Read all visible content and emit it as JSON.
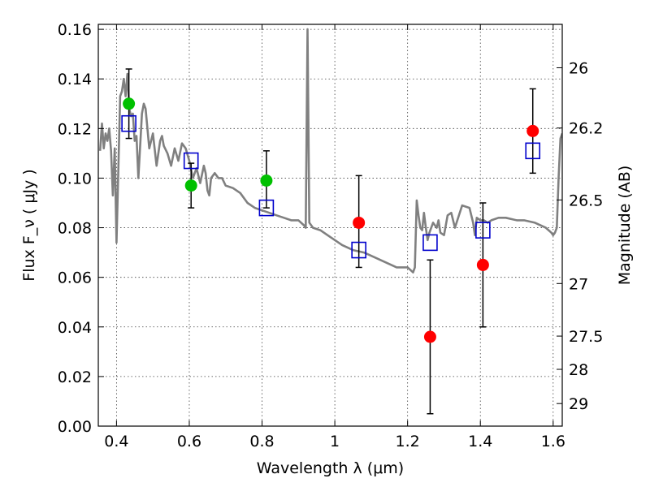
{
  "chart_data": {
    "type": "scatter",
    "xlabel": "Wavelength  λ (μm)",
    "ylabel": "Flux  F_ν  ( μJy )",
    "ylabel_right": "Magnitude (AB)",
    "xlim": [
      0.35,
      1.625
    ],
    "ylim": [
      0.0,
      0.162
    ],
    "grid": true,
    "x_ticks": [
      0.4,
      0.6,
      0.8,
      1.0,
      1.2,
      1.4,
      1.6
    ],
    "x_tick_labels": [
      "0.4",
      "0.6",
      "0.8",
      "1",
      "1.2",
      "1.4",
      "1.6"
    ],
    "y_ticks": [
      0.0,
      0.02,
      0.04,
      0.06,
      0.08,
      0.1,
      0.12,
      0.14,
      0.16
    ],
    "y_tick_labels": [
      "0.00",
      "0.02",
      "0.04",
      "0.06",
      "0.08",
      "0.10",
      "0.12",
      "0.14",
      "0.16"
    ],
    "mag_ticks": [
      {
        "label": "26",
        "flux": 0.1445
      },
      {
        "label": "26.2",
        "flux": 0.1202
      },
      {
        "label": "26.5",
        "flux": 0.0912
      },
      {
        "label": "27",
        "flux": 0.0575
      },
      {
        "label": "27.5",
        "flux": 0.0363
      },
      {
        "label": "28",
        "flux": 0.0229
      },
      {
        "label": "29",
        "flux": 0.0091
      }
    ],
    "series": [
      {
        "kind": "model-spectrum",
        "color": "#808080",
        "x": [
          0.355,
          0.36,
          0.365,
          0.37,
          0.375,
          0.38,
          0.385,
          0.39,
          0.395,
          0.4,
          0.41,
          0.415,
          0.42,
          0.425,
          0.43,
          0.435,
          0.44,
          0.445,
          0.45,
          0.455,
          0.46,
          0.47,
          0.475,
          0.48,
          0.49,
          0.5,
          0.51,
          0.52,
          0.525,
          0.53,
          0.54,
          0.55,
          0.56,
          0.57,
          0.58,
          0.59,
          0.6,
          0.61,
          0.62,
          0.63,
          0.64,
          0.645,
          0.65,
          0.655,
          0.66,
          0.67,
          0.68,
          0.69,
          0.7,
          0.72,
          0.74,
          0.76,
          0.78,
          0.8,
          0.82,
          0.84,
          0.86,
          0.88,
          0.9,
          0.915,
          0.92,
          0.925,
          0.93,
          0.935,
          0.94,
          0.96,
          0.98,
          1.0,
          1.02,
          1.05,
          1.08,
          1.11,
          1.14,
          1.17,
          1.2,
          1.215,
          1.22,
          1.225,
          1.23,
          1.235,
          1.24,
          1.245,
          1.25,
          1.255,
          1.26,
          1.27,
          1.28,
          1.285,
          1.29,
          1.3,
          1.31,
          1.32,
          1.33,
          1.35,
          1.37,
          1.38,
          1.385,
          1.39,
          1.4,
          1.41,
          1.42,
          1.43,
          1.45,
          1.47,
          1.5,
          1.52,
          1.55,
          1.58,
          1.595,
          1.6,
          1.605,
          1.61,
          1.615,
          1.62,
          1.625
        ],
        "y": [
          0.111,
          0.122,
          0.112,
          0.118,
          0.115,
          0.12,
          0.111,
          0.093,
          0.112,
          0.074,
          0.133,
          0.135,
          0.14,
          0.133,
          0.142,
          0.128,
          0.125,
          0.126,
          0.115,
          0.117,
          0.1,
          0.126,
          0.13,
          0.128,
          0.112,
          0.118,
          0.105,
          0.115,
          0.117,
          0.113,
          0.11,
          0.105,
          0.112,
          0.107,
          0.114,
          0.112,
          0.107,
          0.1,
          0.104,
          0.098,
          0.105,
          0.102,
          0.095,
          0.093,
          0.1,
          0.102,
          0.1,
          0.1,
          0.097,
          0.096,
          0.094,
          0.09,
          0.088,
          0.087,
          0.086,
          0.085,
          0.084,
          0.083,
          0.083,
          0.081,
          0.08,
          0.16,
          0.082,
          0.081,
          0.08,
          0.079,
          0.077,
          0.075,
          0.073,
          0.071,
          0.07,
          0.068,
          0.066,
          0.064,
          0.064,
          0.062,
          0.064,
          0.091,
          0.085,
          0.08,
          0.079,
          0.086,
          0.08,
          0.075,
          0.078,
          0.082,
          0.08,
          0.083,
          0.078,
          0.077,
          0.085,
          0.086,
          0.08,
          0.089,
          0.088,
          0.082,
          0.077,
          0.084,
          0.083,
          0.083,
          0.082,
          0.083,
          0.084,
          0.084,
          0.083,
          0.083,
          0.082,
          0.08,
          0.078,
          0.077,
          0.078,
          0.08,
          0.1,
          0.116,
          0.118
        ]
      },
      {
        "kind": "green-points",
        "color": "#00c000",
        "x": [
          0.434,
          0.605,
          0.812
        ],
        "y": [
          0.13,
          0.097,
          0.099
        ]
      },
      {
        "kind": "red-points",
        "color": "#ff0000",
        "x": [
          1.066,
          1.262,
          1.407,
          1.544
        ],
        "y": [
          0.082,
          0.036,
          0.065,
          0.119
        ]
      },
      {
        "kind": "model-points",
        "color": "#0000cc",
        "x": [
          0.434,
          0.605,
          0.812,
          1.066,
          1.262,
          1.407,
          1.544
        ],
        "y": [
          0.122,
          0.107,
          0.088,
          0.071,
          0.074,
          0.079,
          0.111
        ]
      }
    ],
    "error_bars": [
      {
        "x": 0.434,
        "low": 0.116,
        "high": 0.144
      },
      {
        "x": 0.605,
        "low": 0.088,
        "high": 0.106
      },
      {
        "x": 0.812,
        "low": 0.088,
        "high": 0.111
      },
      {
        "x": 1.066,
        "low": 0.064,
        "high": 0.101
      },
      {
        "x": 1.262,
        "low": 0.005,
        "high": 0.067
      },
      {
        "x": 1.407,
        "low": 0.04,
        "high": 0.09
      },
      {
        "x": 1.544,
        "low": 0.102,
        "high": 0.136
      }
    ]
  }
}
